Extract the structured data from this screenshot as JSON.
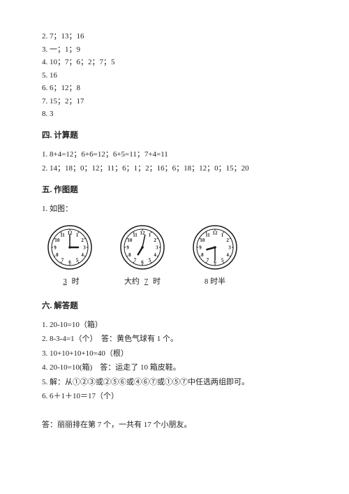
{
  "top_items": [
    "2. 7；13；16",
    "3. 一；1；9",
    "4. 10；7；6；2；7；5",
    "5. 16",
    "6. 6；12；8",
    "7. 15；2；17",
    "8. 3"
  ],
  "sec4": {
    "title": "四. 计算题",
    "items": [
      "1. 8+4=12；6+6=12；6+5=11；7+4=11",
      "2. 14；18；0；12；11；6；1；2；16；6；18；12；0；15；20"
    ]
  },
  "sec5": {
    "title": "五. 作图题",
    "prompt": "1. 如图：",
    "clocks": [
      {
        "caption_before": "",
        "blank": "3",
        "caption_after": " 时",
        "hour": 3,
        "minute": 0
      },
      {
        "caption_before": "大约 ",
        "blank": "7",
        "caption_after": " 时",
        "hour": 7,
        "minute": 2
      },
      {
        "caption_before": "",
        "blank": "",
        "caption_after": "8 时半",
        "hour": 8,
        "minute": 30
      }
    ],
    "clock_style": {
      "radius": 32,
      "ring_inner": 26,
      "num_radius": 21,
      "tick_inner": 24,
      "tick_outer": 26,
      "hour_len": 12,
      "minute_len": 18,
      "stroke": "#1a1a1a",
      "fill": "#ffffff",
      "font_size": 7
    }
  },
  "sec6": {
    "title": "六. 解答题",
    "items": [
      "1. 20-10=10（箱）",
      "2. 8-3-4=1（个）　答：黄色气球有 1 个。",
      "3. 10+10+10+10=40（根）",
      "4. 20-10=10(箱)　答：运走了 10 箱皮鞋。",
      "5. 解：从①②③或②⑤⑥或④⑥⑦或①⑤⑦中任选两组即可。",
      "6. 6＋1＋10＝17（个）"
    ],
    "final": "答：丽丽排在第 7 个，一共有 17 个小朋友。"
  }
}
